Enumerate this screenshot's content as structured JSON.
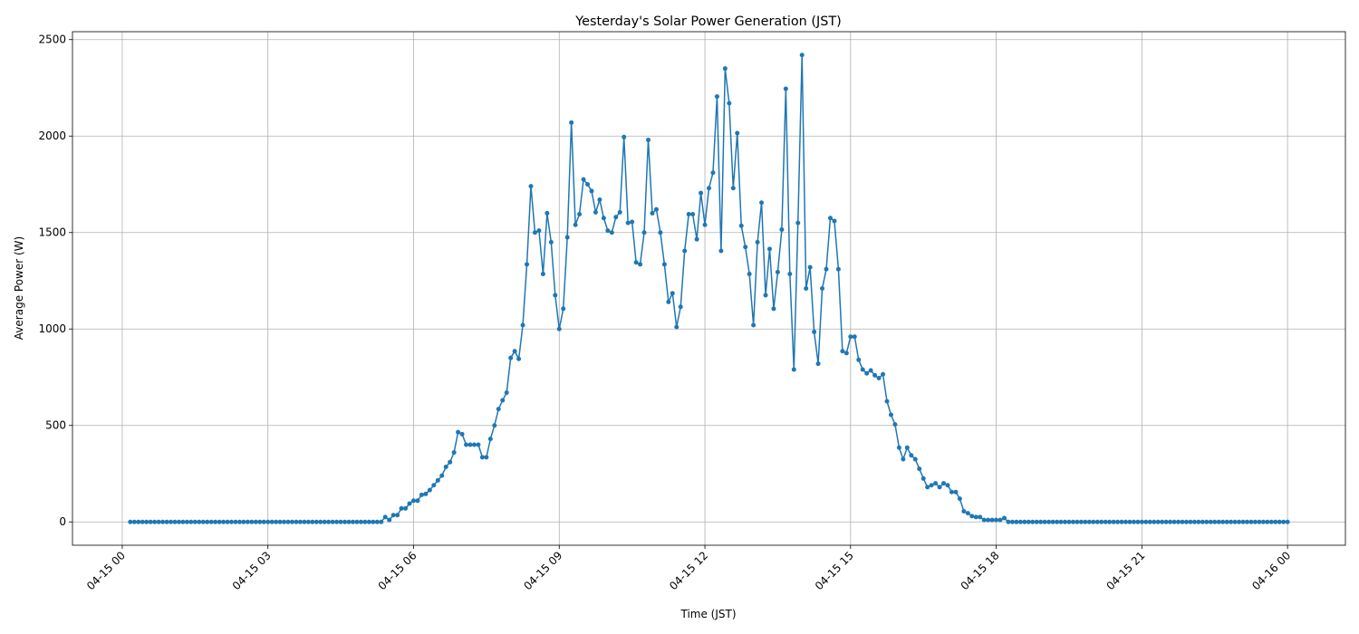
{
  "chart_data": {
    "type": "line",
    "title": "Yesterday's Solar Power Generation (JST)",
    "xlabel": "Time (JST)",
    "ylabel": "Average Power (W)",
    "color": "#1f77b4",
    "grid": true,
    "x": [
      10,
      15,
      20,
      25,
      30,
      35,
      40,
      45,
      50,
      55,
      60,
      65,
      70,
      75,
      80,
      85,
      90,
      95,
      100,
      105,
      110,
      115,
      120,
      125,
      130,
      135,
      140,
      145,
      150,
      155,
      160,
      165,
      170,
      175,
      180,
      185,
      190,
      195,
      200,
      205,
      210,
      215,
      220,
      225,
      230,
      235,
      240,
      245,
      250,
      255,
      260,
      265,
      270,
      275,
      280,
      285,
      290,
      295,
      300,
      305,
      310,
      315,
      320,
      325,
      330,
      335,
      340,
      345,
      350,
      355,
      360,
      365,
      370,
      375,
      380,
      385,
      390,
      395,
      400,
      405,
      410,
      415,
      420,
      425,
      430,
      435,
      440,
      445,
      450,
      455,
      460,
      465,
      470,
      475,
      480,
      485,
      490,
      495,
      500,
      505,
      510,
      515,
      520,
      525,
      530,
      535,
      540,
      545,
      550,
      555,
      560,
      565,
      570,
      575,
      580,
      585,
      590,
      595,
      600,
      605,
      610,
      615,
      620,
      625,
      630,
      635,
      640,
      645,
      650,
      655,
      660,
      665,
      670,
      675,
      680,
      685,
      690,
      695,
      700,
      705,
      710,
      715,
      720,
      725,
      730,
      735,
      740,
      745,
      750,
      755,
      760,
      765,
      770,
      775,
      780,
      785,
      790,
      795,
      800,
      805,
      810,
      815,
      820,
      825,
      830,
      835,
      840,
      845,
      850,
      855,
      860,
      865,
      870,
      875,
      880,
      885,
      890,
      895,
      900,
      905,
      910,
      915,
      920,
      925,
      930,
      935,
      940,
      945,
      950,
      955,
      960,
      965,
      970,
      975,
      980,
      985,
      990,
      995,
      1000,
      1005,
      1010,
      1015,
      1020,
      1025,
      1030,
      1035,
      1040,
      1045,
      1050,
      1055,
      1060,
      1065,
      1070,
      1075,
      1080,
      1085,
      1090,
      1095,
      1100,
      1105,
      1110,
      1115,
      1120,
      1125,
      1130,
      1135,
      1140,
      1145,
      1150,
      1155,
      1160,
      1165,
      1170,
      1175,
      1180,
      1185,
      1190,
      1195,
      1200,
      1205,
      1210,
      1215,
      1220,
      1225,
      1230,
      1235,
      1240,
      1245,
      1250,
      1255,
      1260,
      1265,
      1270,
      1275,
      1280,
      1285,
      1290,
      1295,
      1300,
      1305,
      1310,
      1315,
      1320,
      1325,
      1330,
      1335,
      1340,
      1345,
      1350,
      1355,
      1360,
      1365,
      1370,
      1375,
      1380,
      1385,
      1390,
      1395,
      1400,
      1405,
      1410,
      1415,
      1420,
      1425,
      1430,
      1435,
      1440
    ],
    "values": [
      0,
      0,
      0,
      0,
      0,
      0,
      0,
      0,
      0,
      0,
      0,
      0,
      0,
      0,
      0,
      0,
      0,
      0,
      0,
      0,
      0,
      0,
      0,
      0,
      0,
      0,
      0,
      0,
      0,
      0,
      0,
      0,
      0,
      0,
      0,
      0,
      0,
      0,
      0,
      0,
      0,
      0,
      0,
      0,
      0,
      0,
      0,
      0,
      0,
      0,
      0,
      0,
      0,
      0,
      0,
      0,
      0,
      0,
      0,
      0,
      0,
      0,
      0,
      25,
      10,
      35,
      35,
      70,
      70,
      95,
      110,
      110,
      140,
      145,
      165,
      190,
      215,
      240,
      285,
      310,
      360,
      465,
      455,
      400,
      400,
      400,
      400,
      335,
      335,
      430,
      500,
      585,
      630,
      670,
      850,
      885,
      845,
      1020,
      1335,
      1740,
      1500,
      1510,
      1285,
      1600,
      1450,
      1175,
      1000,
      1105,
      1475,
      2070,
      1540,
      1595,
      1775,
      1750,
      1715,
      1605,
      1670,
      1575,
      1510,
      1500,
      1580,
      1605,
      1995,
      1550,
      1555,
      1345,
      1335,
      1500,
      1980,
      1600,
      1620,
      1500,
      1335,
      1140,
      1185,
      1010,
      1115,
      1405,
      1595,
      1595,
      1465,
      1705,
      1540,
      1730,
      1810,
      2205,
      1405,
      2350,
      2170,
      1730,
      2015,
      1535,
      1425,
      1285,
      1020,
      1450,
      1655,
      1175,
      1415,
      1105,
      1295,
      1515,
      2245,
      1285,
      790,
      1550,
      2420,
      1210,
      1320,
      985,
      820,
      1210,
      1310,
      1575,
      1560,
      1310,
      885,
      875,
      960,
      960,
      840,
      790,
      770,
      785,
      760,
      745,
      765,
      625,
      555,
      505,
      385,
      325,
      385,
      345,
      325,
      275,
      225,
      180,
      190,
      200,
      180,
      200,
      190,
      155,
      155,
      120,
      55,
      45,
      30,
      25,
      25,
      10,
      10,
      10,
      10,
      10,
      20,
      0,
      0,
      0,
      0,
      0,
      0,
      0,
      0,
      0,
      0,
      0,
      0,
      0,
      0,
      0,
      0,
      0,
      0,
      0,
      0,
      0,
      0,
      0,
      0,
      0,
      0,
      0,
      0,
      0,
      0,
      0,
      0,
      0,
      0,
      0,
      0,
      0,
      0,
      0,
      0,
      0,
      0,
      0,
      0,
      0,
      0,
      0,
      0,
      0,
      0,
      0,
      0,
      0,
      0,
      0,
      0,
      0,
      0,
      0,
      0,
      0,
      0,
      0,
      0,
      0,
      0,
      0,
      0,
      0,
      0
    ],
    "xlim": [
      -61.5,
      1511.5
    ],
    "ylim": [
      -121,
      2541
    ],
    "xticks": [
      {
        "value": 0,
        "label": "04-15 00"
      },
      {
        "value": 180,
        "label": "04-15 03"
      },
      {
        "value": 360,
        "label": "04-15 06"
      },
      {
        "value": 540,
        "label": "04-15 09"
      },
      {
        "value": 720,
        "label": "04-15 12"
      },
      {
        "value": 900,
        "label": "04-15 15"
      },
      {
        "value": 1080,
        "label": "04-15 18"
      },
      {
        "value": 1260,
        "label": "04-15 21"
      },
      {
        "value": 1440,
        "label": "04-16 00"
      }
    ],
    "yticks": [
      0,
      500,
      1000,
      1500,
      2000,
      2500
    ]
  }
}
